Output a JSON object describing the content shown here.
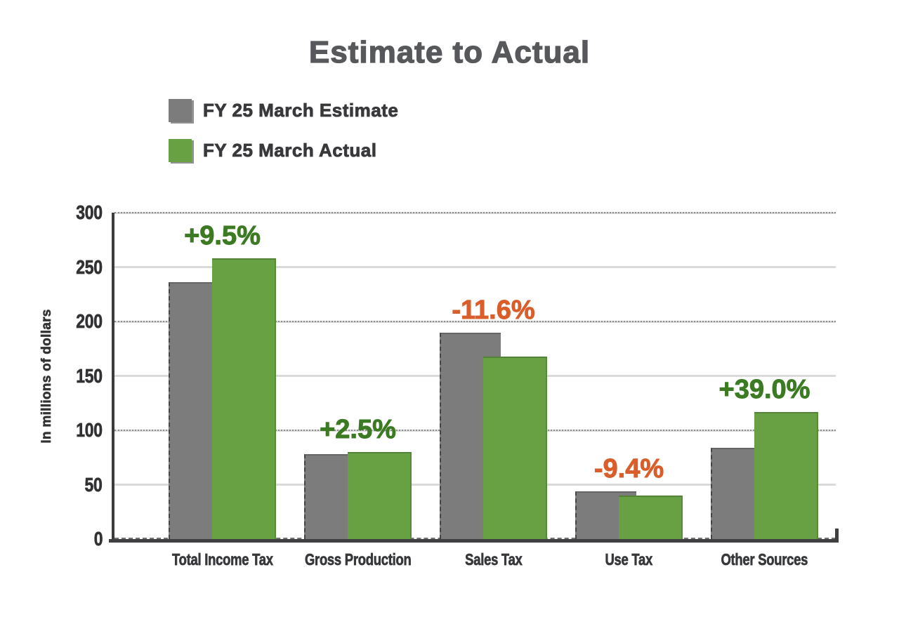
{
  "title": "Estimate to Actual",
  "legend": [
    {
      "label": "FY 25 March Estimate",
      "series_key": "estimate"
    },
    {
      "label": "FY 25 March Actual",
      "series_key": "actual"
    }
  ],
  "colors": {
    "estimate_bar": "#7C7C7C",
    "actual_bar": "#68A144",
    "positive_label": "#3C7A23",
    "negative_label": "#D95E2B",
    "title_text": "#57585B",
    "axis_text": "#323234",
    "gridline": "#DADADA",
    "axis_line": "#3F3F41"
  },
  "chart_data": {
    "type": "bar",
    "title": "Estimate to Actual",
    "xlabel": "",
    "ylabel": "In millions of dollars",
    "ylim": [
      0,
      300
    ],
    "ytick_interval": 50,
    "yticks": [
      0,
      50,
      100,
      150,
      200,
      250,
      300
    ],
    "grid": true,
    "legend_position": "top-left",
    "categories": [
      "Total Income Tax",
      "Gross Production",
      "Sales Tax",
      "Use Tax",
      "Other Sources"
    ],
    "series": [
      {
        "name": "FY 25 March Estimate",
        "color": "#7C7C7C",
        "values": [
          236,
          78,
          190,
          44,
          84
        ]
      },
      {
        "name": "FY 25 March Actual",
        "color": "#68A144",
        "values": [
          258,
          80,
          168,
          40,
          117
        ]
      }
    ],
    "change_labels": [
      "+9.5%",
      "+2.5%",
      "-11.6%",
      "-9.4%",
      "+39.0%"
    ]
  }
}
